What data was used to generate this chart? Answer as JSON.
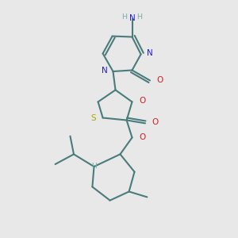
{
  "bg_color": "#e8e8e8",
  "bond_color": "#4a7c7c",
  "bond_width": 1.5,
  "n_color": "#2020cc",
  "o_color": "#cc2020",
  "s_color": "#aaaa00",
  "h_color": "#7aacac",
  "figsize": [
    3.0,
    3.0
  ],
  "dpi": 100,
  "xlim": [
    0,
    10
  ],
  "ylim": [
    0,
    10
  ]
}
